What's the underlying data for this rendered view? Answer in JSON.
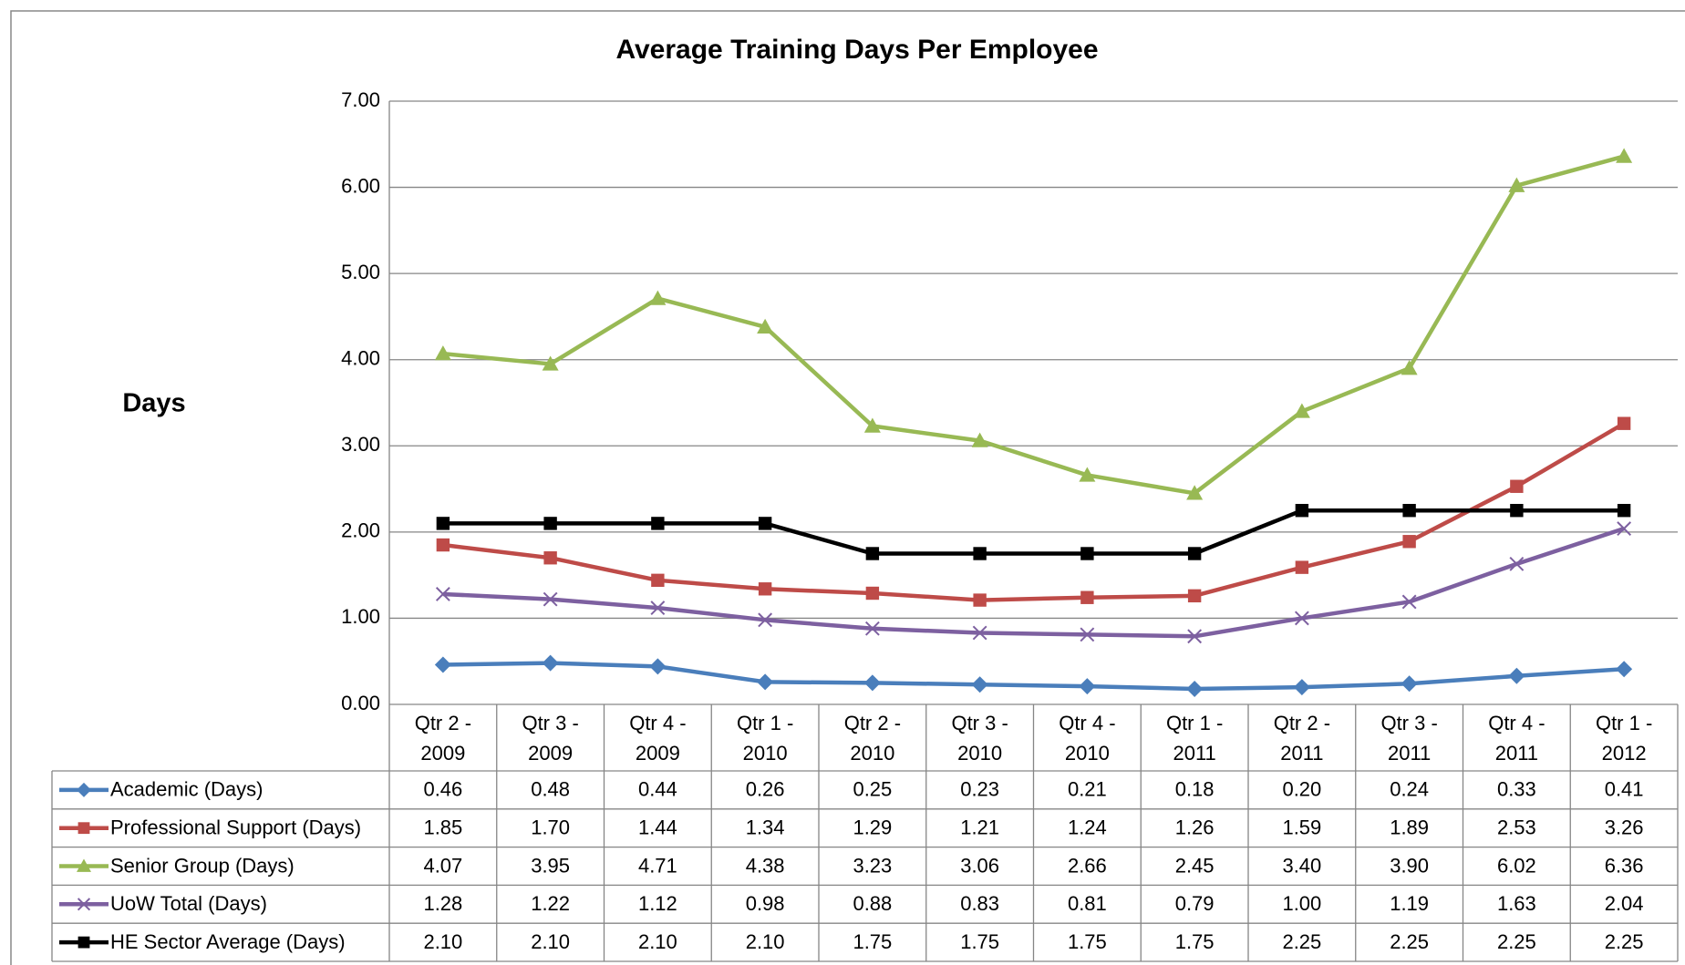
{
  "chart_data": {
    "type": "line",
    "title": "Average Training Days Per Employee",
    "y_label": "Days",
    "categories": [
      "Qtr 2 - 2009",
      "Qtr 3 - 2009",
      "Qtr 4 - 2009",
      "Qtr 1 - 2010",
      "Qtr 2 - 2010",
      "Qtr 3 - 2010",
      "Qtr 4 - 2010",
      "Qtr 1 - 2011",
      "Qtr 2 - 2011",
      "Qtr 3 - 2011",
      "Qtr 4 - 2011",
      "Qtr 1 - 2012"
    ],
    "ylim": [
      0,
      7
    ],
    "yticks": [
      {
        "value": 0,
        "label": "0.00"
      },
      {
        "value": 1,
        "label": "1.00"
      },
      {
        "value": 2,
        "label": "2.00"
      },
      {
        "value": 3,
        "label": "3.00"
      },
      {
        "value": 4,
        "label": "4.00"
      },
      {
        "value": 5,
        "label": "5.00"
      },
      {
        "value": 6,
        "label": "6.00"
      },
      {
        "value": 7,
        "label": "7.00"
      }
    ],
    "grid": true,
    "series": [
      {
        "name": "Academic (Days)",
        "color": "#4a7ebb",
        "marker": "diamond",
        "values": [
          0.46,
          0.48,
          0.44,
          0.26,
          0.25,
          0.23,
          0.21,
          0.18,
          0.2,
          0.24,
          0.33,
          0.41
        ],
        "value_labels": [
          "0.46",
          "0.48",
          "0.44",
          "0.26",
          "0.25",
          "0.23",
          "0.21",
          "0.18",
          "0.20",
          "0.24",
          "0.33",
          "0.41"
        ]
      },
      {
        "name": "Professional Support (Days)",
        "color": "#be4b48",
        "marker": "square",
        "values": [
          1.85,
          1.7,
          1.44,
          1.34,
          1.29,
          1.21,
          1.24,
          1.26,
          1.59,
          1.89,
          2.53,
          3.26
        ],
        "value_labels": [
          "1.85",
          "1.70",
          "1.44",
          "1.34",
          "1.29",
          "1.21",
          "1.24",
          "1.26",
          "1.59",
          "1.89",
          "2.53",
          "3.26"
        ]
      },
      {
        "name": "Senior Group (Days)",
        "color": "#98b954",
        "marker": "triangle",
        "values": [
          4.07,
          3.95,
          4.71,
          4.38,
          3.23,
          3.06,
          2.66,
          2.45,
          3.4,
          3.9,
          6.02,
          6.36
        ],
        "value_labels": [
          "4.07",
          "3.95",
          "4.71",
          "4.38",
          "3.23",
          "3.06",
          "2.66",
          "2.45",
          "3.40",
          "3.90",
          "6.02",
          "6.36"
        ]
      },
      {
        "name": "UoW Total (Days)",
        "color": "#7d60a0",
        "marker": "x",
        "values": [
          1.28,
          1.22,
          1.12,
          0.98,
          0.88,
          0.83,
          0.81,
          0.79,
          1.0,
          1.19,
          1.63,
          2.04
        ],
        "value_labels": [
          "1.28",
          "1.22",
          "1.12",
          "0.98",
          "0.88",
          "0.83",
          "0.81",
          "0.79",
          "1.00",
          "1.19",
          "1.63",
          "2.04"
        ]
      },
      {
        "name": "HE Sector Average (Days)",
        "color": "#000000",
        "marker": "square",
        "values": [
          2.1,
          2.1,
          2.1,
          2.1,
          1.75,
          1.75,
          1.75,
          1.75,
          2.25,
          2.25,
          2.25,
          2.25
        ],
        "value_labels": [
          "2.10",
          "2.10",
          "2.10",
          "2.10",
          "1.75",
          "1.75",
          "1.75",
          "1.75",
          "2.25",
          "2.25",
          "2.25",
          "2.25"
        ]
      }
    ]
  }
}
